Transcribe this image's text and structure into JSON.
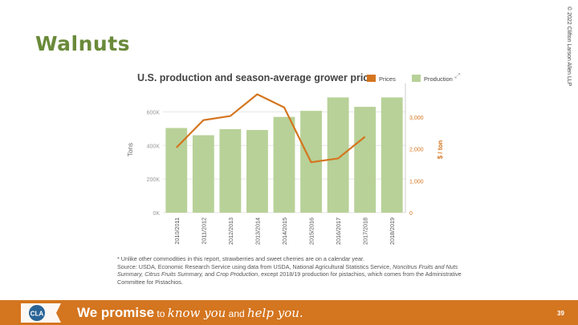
{
  "slide": {
    "title": "Walnuts",
    "copyright": "© 2022 Clifton Larson Allen LLP",
    "page_number": "39"
  },
  "footnotes": {
    "note1": "* Unlike other commodities in this report, strawberries and sweet cherries are on a calendar year.",
    "source_a": "Source: USDA, Economic Research Service using data from USDA, National Agricultural Statistics Service, ",
    "source_b": "Noncitrus Fruits and Nuts Summary, Citrus Fruits Summary,",
    "source_c": " and ",
    "source_d": "Crop Production",
    "source_e": ", except 2018/19 production for pistachios, which comes from the Administrative Committee for Pistachios."
  },
  "footer": {
    "logo_text": "CLA",
    "tag_strong": "We promise",
    "tag_to": " to ",
    "tag_know": "know you",
    "tag_and": " and ",
    "tag_help": "help you."
  },
  "colors": {
    "bar": "#b8d198",
    "line": "#d4751f",
    "footer": "#d4751f",
    "title": "#6a8a3a"
  },
  "chart_data": {
    "type": "bar+line",
    "title": "U.S. production and season-average grower price",
    "categories": [
      "2010/2011",
      "2011/2012",
      "2012/2013",
      "2013/2014",
      "2014/2015",
      "2015/2016",
      "2016/2017",
      "2017/2018",
      "2018/2019"
    ],
    "series": [
      {
        "name": "Production",
        "type": "bar",
        "axis": "left",
        "values": [
          504000,
          461000,
          497000,
          492000,
          570000,
          606000,
          686000,
          630000,
          686000
        ]
      },
      {
        "name": "Prices",
        "type": "line",
        "axis": "right",
        "values": [
          2040,
          2900,
          3030,
          3710,
          3300,
          1580,
          1700,
          2380,
          null
        ]
      }
    ],
    "ylabel": "Tons",
    "ylabel_right": "$ / ton",
    "ylim": [
      0,
      750000
    ],
    "ylim_right": [
      0,
      3950
    ],
    "yticks": [
      0,
      200000,
      400000,
      600000
    ],
    "ytick_labels": [
      "0K",
      "200K",
      "400K",
      "600K"
    ],
    "yticks_right": [
      0,
      1000,
      2000,
      3000
    ],
    "ytick_labels_right": [
      "0",
      "1,000",
      "2,000",
      "3,000"
    ],
    "legend": [
      "Prices",
      "Production"
    ],
    "legend_position": "top-right"
  }
}
